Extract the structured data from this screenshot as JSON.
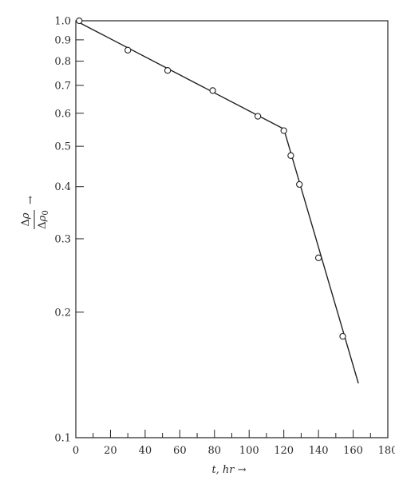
{
  "chart_data": {
    "type": "scatter",
    "y_scale": "log",
    "grid": false,
    "xlabel": "t, hr →",
    "ylabel_parts": {
      "num_delta": "Δ",
      "num_rho": "ρ",
      "den_delta": "Δ",
      "den_rho": "ρ",
      "den_subscript": "0",
      "arrow": "→"
    },
    "xlim": [
      0,
      180
    ],
    "ylim": [
      0.1,
      1.0
    ],
    "x_ticks": [
      0,
      20,
      40,
      60,
      80,
      100,
      120,
      140,
      160,
      180
    ],
    "x_tick_labels": [
      "0",
      "20",
      "40",
      "60",
      "80",
      "100",
      "120",
      "140",
      "160",
      "180"
    ],
    "y_ticks": [
      0.1,
      0.2,
      0.3,
      0.4,
      0.5,
      0.6,
      0.7,
      0.8,
      0.9,
      1.0
    ],
    "y_tick_labels": [
      "0.1",
      "0.2",
      "0.3",
      "0.4",
      "0.5",
      "0.6",
      "0.7",
      "0.8",
      "0.9",
      "1.0"
    ],
    "points": {
      "x": [
        2,
        30,
        53,
        79,
        105,
        120,
        124,
        129,
        140,
        154
      ],
      "y": [
        1.0,
        0.85,
        0.76,
        0.68,
        0.59,
        0.545,
        0.475,
        0.405,
        0.27,
        0.175
      ]
    },
    "fit_line": {
      "x": [
        0,
        120,
        163
      ],
      "y": [
        1.0,
        0.55,
        0.135
      ]
    }
  }
}
